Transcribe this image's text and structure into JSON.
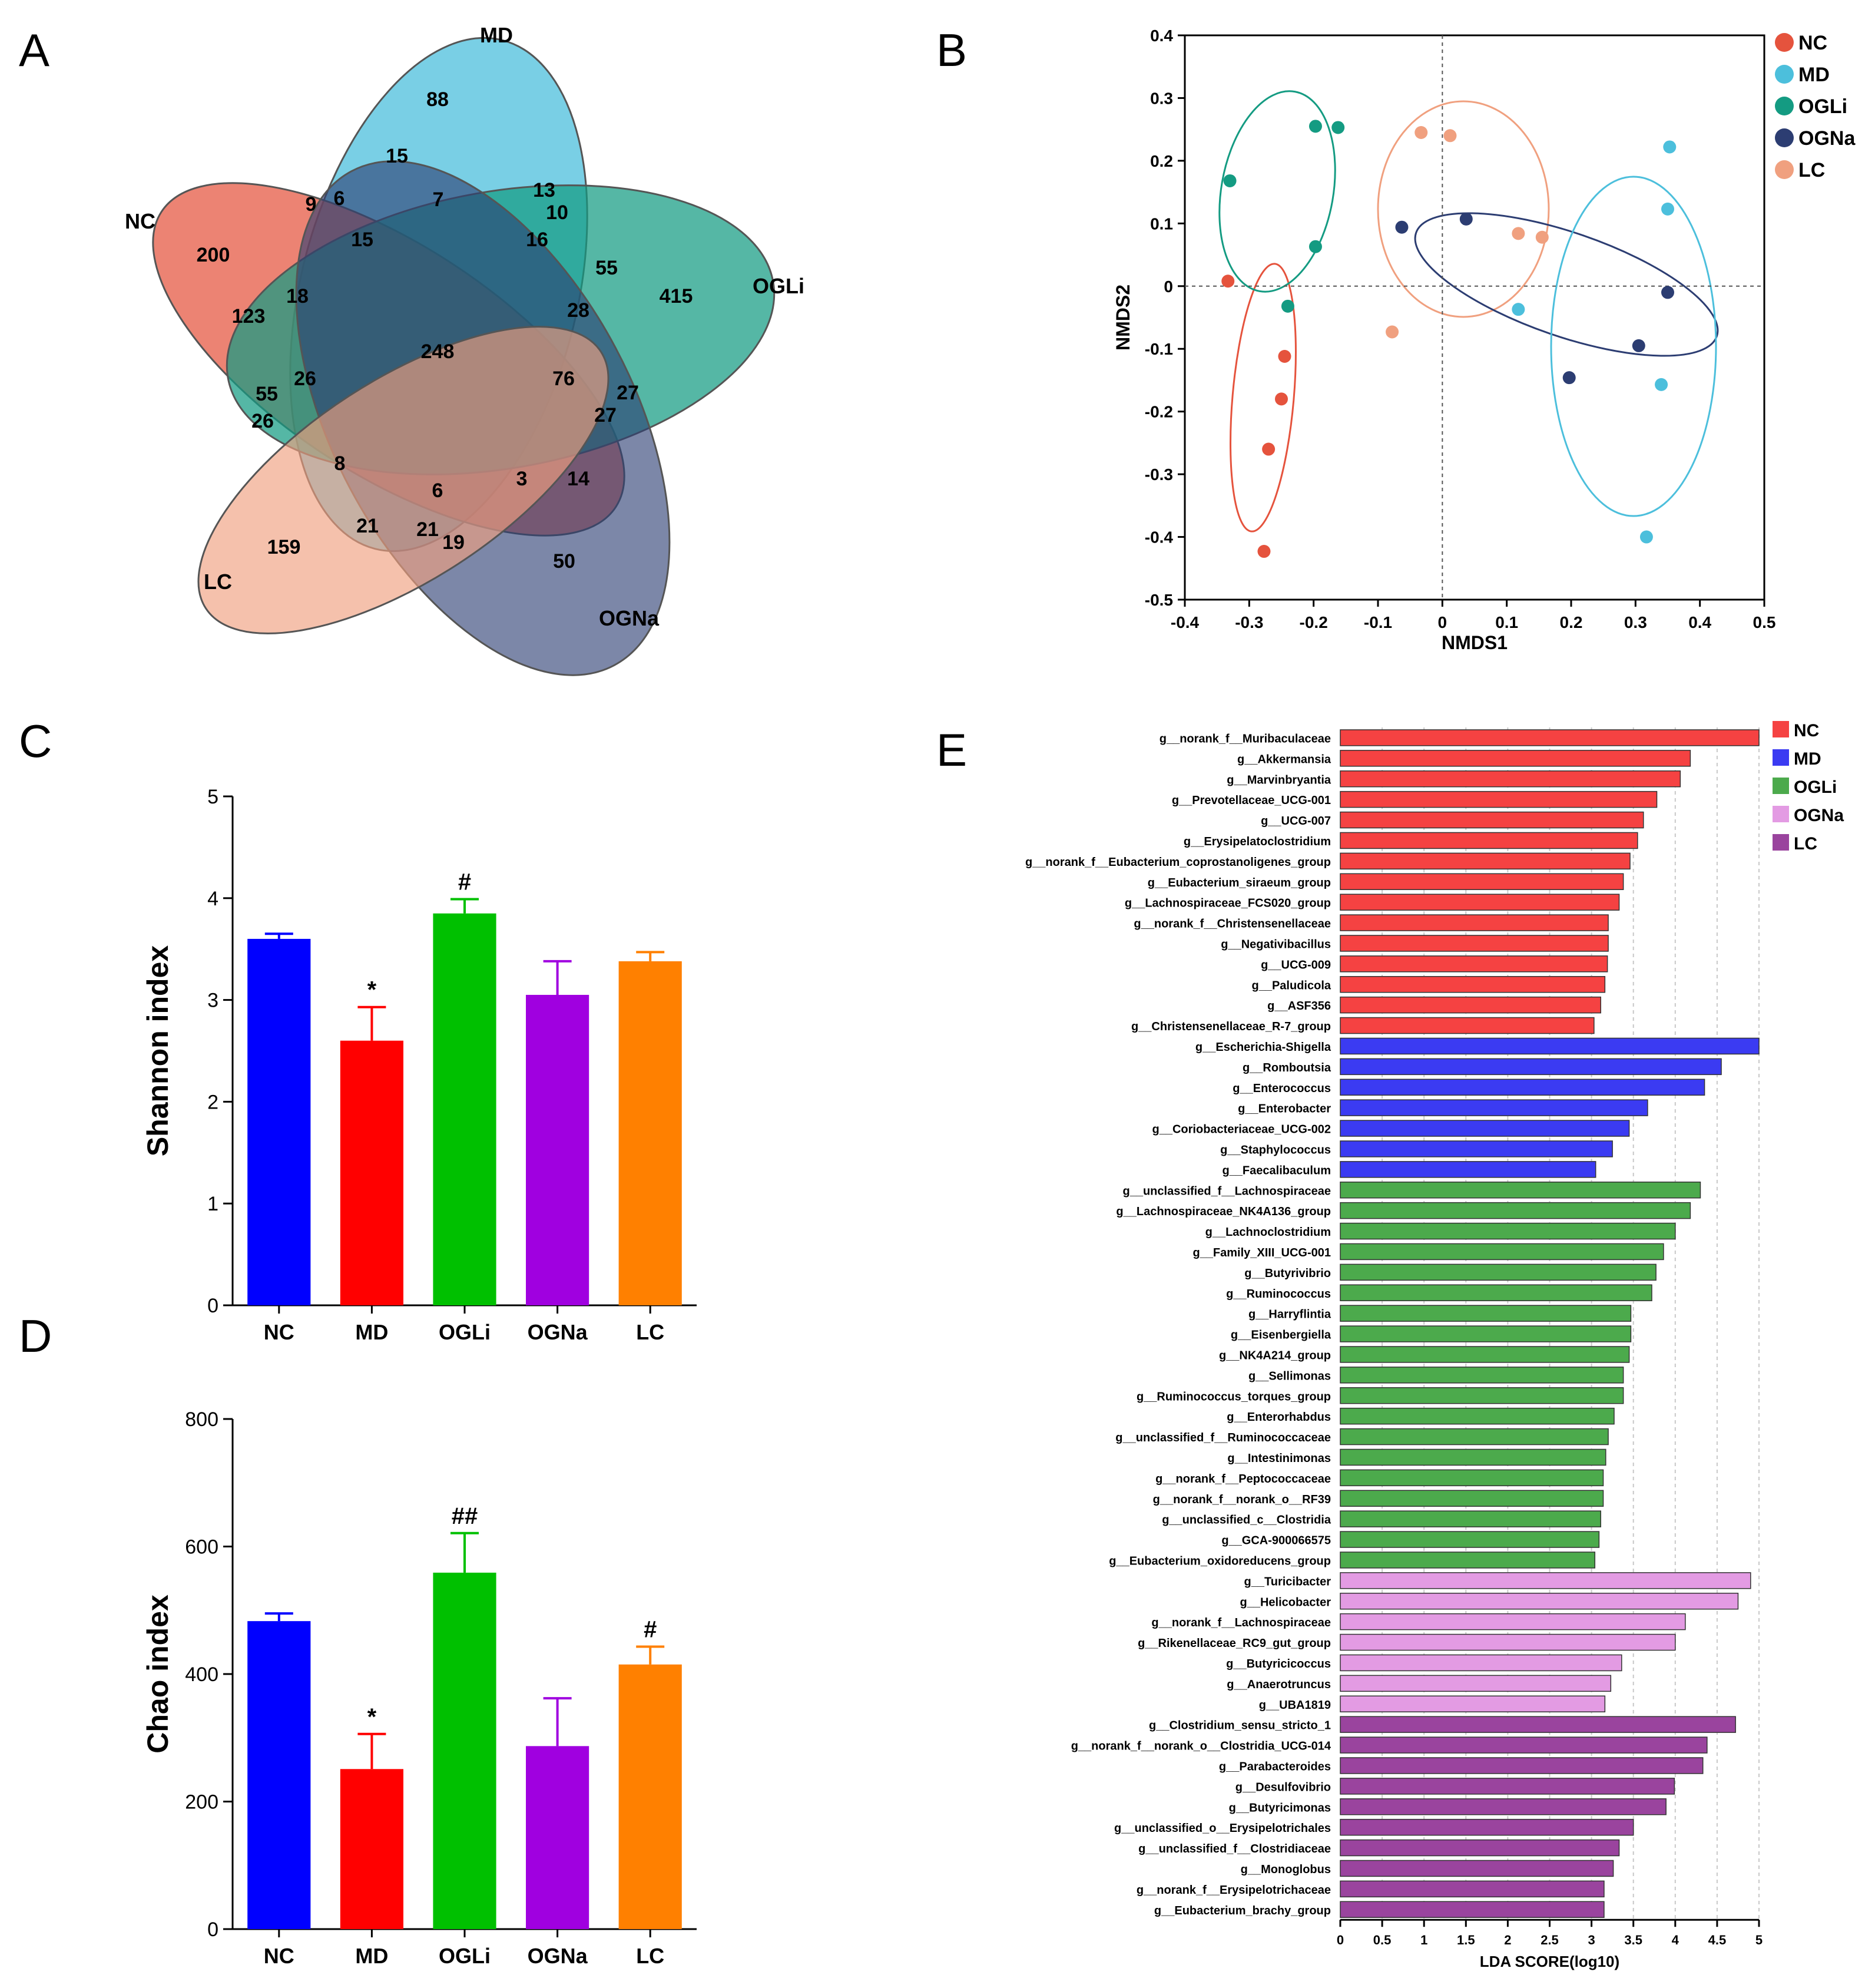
{
  "panels": {
    "A": "A",
    "B": "B",
    "C": "C",
    "D": "D",
    "E": "E"
  },
  "colors": {
    "NC": "#e5533d",
    "MD": "#4cbfdc",
    "OGLi": "#149b82",
    "OGNa": "#2c3d72",
    "LC": "#f0a07f",
    "bar_NC": "#0000ff",
    "bar_MD": "#ff0000",
    "bar_OGLi": "#00c000",
    "bar_OGNa": "#a000e0",
    "bar_LC": "#ff8000",
    "lda_NC": "#f54242",
    "lda_MD": "#3b3bf2",
    "lda_OGLi": "#4caa4c",
    "lda_OGNa": "#e39be3",
    "lda_LC": "#9a449e"
  },
  "chart_data": [
    {
      "id": "venn",
      "type": "venn",
      "sets": [
        "MD",
        "NC",
        "OGLi",
        "LC",
        "OGNa"
      ],
      "counts": [
        {
          "value": "88"
        },
        {
          "value": "15"
        },
        {
          "value": "13"
        },
        {
          "value": "10"
        },
        {
          "value": "9"
        },
        {
          "value": "6"
        },
        {
          "value": "7"
        },
        {
          "value": "200"
        },
        {
          "value": "15"
        },
        {
          "value": "16"
        },
        {
          "value": "55"
        },
        {
          "value": "415"
        },
        {
          "value": "123"
        },
        {
          "value": "18"
        },
        {
          "value": "28"
        },
        {
          "value": "248"
        },
        {
          "value": "26"
        },
        {
          "value": "76"
        },
        {
          "value": "55"
        },
        {
          "value": "27"
        },
        {
          "value": "26"
        },
        {
          "value": "27"
        },
        {
          "value": "8"
        },
        {
          "value": "6"
        },
        {
          "value": "3"
        },
        {
          "value": "14"
        },
        {
          "value": "21"
        },
        {
          "value": "21"
        },
        {
          "value": "19"
        },
        {
          "value": "159"
        },
        {
          "value": "50"
        }
      ]
    },
    {
      "id": "nmds",
      "type": "scatter",
      "xlabel": "NMDS1",
      "ylabel": "NMDS2",
      "xlim": [
        -0.4,
        0.5
      ],
      "ylim": [
        -0.5,
        0.4
      ],
      "xticks": [
        "-0.4",
        "-0.3",
        "-0.2",
        "-0.1",
        "0",
        "0.1",
        "0.2",
        "0.3",
        "0.4",
        "0.5"
      ],
      "yticks": [
        "0.4",
        "0.3",
        "0.2",
        "0.1",
        "0",
        "-0.1",
        "-0.2",
        "-0.3",
        "-0.4",
        "-0.5"
      ],
      "series": [
        {
          "name": "NC",
          "points": [
            [
              -0.333,
              0.008
            ],
            [
              -0.245,
              -0.112
            ],
            [
              -0.25,
              -0.18
            ],
            [
              -0.27,
              -0.26
            ],
            [
              -0.277,
              -0.423
            ]
          ]
        },
        {
          "name": "MD",
          "points": [
            [
              0.353,
              0.222
            ],
            [
              0.35,
              0.123
            ],
            [
              0.118,
              -0.037
            ],
            [
              0.34,
              -0.157
            ],
            [
              0.317,
              -0.4
            ]
          ]
        },
        {
          "name": "OGLi",
          "points": [
            [
              -0.33,
              0.168
            ],
            [
              -0.197,
              0.255
            ],
            [
              -0.162,
              0.253
            ],
            [
              -0.197,
              0.063
            ],
            [
              -0.24,
              -0.032
            ]
          ]
        },
        {
          "name": "OGNa",
          "points": [
            [
              -0.063,
              0.094
            ],
            [
              0.037,
              0.107
            ],
            [
              0.35,
              -0.01
            ],
            [
              0.305,
              -0.095
            ],
            [
              0.197,
              -0.146
            ]
          ]
        },
        {
          "name": "LC",
          "points": [
            [
              -0.033,
              0.245
            ],
            [
              0.012,
              0.24
            ],
            [
              0.118,
              0.084
            ],
            [
              0.155,
              0.078
            ],
            [
              -0.078,
              -0.073
            ]
          ]
        }
      ]
    },
    {
      "id": "shannon",
      "type": "bar",
      "ylabel": "Shannon index",
      "ylim": [
        0,
        5
      ],
      "yticks": [
        "0",
        "1",
        "2",
        "3",
        "4",
        "5"
      ],
      "categories": [
        "NC",
        "MD",
        "OGLi",
        "OGNa",
        "LC"
      ],
      "values": [
        3.6,
        2.6,
        3.85,
        3.05,
        3.38
      ],
      "errors": [
        0.05,
        0.33,
        0.14,
        0.33,
        0.09
      ],
      "marks": [
        "",
        "*",
        "#",
        "",
        ""
      ]
    },
    {
      "id": "chao",
      "type": "bar",
      "ylabel": "Chao index",
      "ylim": [
        0,
        800
      ],
      "yticks": [
        "0",
        "200",
        "400",
        "600",
        "800"
      ],
      "categories": [
        "NC",
        "MD",
        "OGLi",
        "OGNa",
        "LC"
      ],
      "values": [
        483,
        251,
        559,
        287,
        415
      ],
      "errors": [
        12,
        55,
        62,
        75,
        28
      ],
      "marks": [
        "",
        "*",
        "##",
        "",
        "#"
      ]
    },
    {
      "id": "lda",
      "type": "bar",
      "orientation": "horizontal",
      "xlabel": "LDA SCORE(log10)",
      "xlim": [
        0,
        5
      ],
      "xticks": [
        "0",
        "0.5",
        "1",
        "1.5",
        "2",
        "2.5",
        "3",
        "3.5",
        "4",
        "4.5",
        "5"
      ],
      "legend": [
        "NC",
        "MD",
        "OGLi",
        "OGNa",
        "LC"
      ],
      "bars": [
        {
          "group": "NC",
          "label": "g__norank_f__Muribaculaceae",
          "value": 5.0
        },
        {
          "group": "NC",
          "label": "g__Akkermansia",
          "value": 4.18
        },
        {
          "group": "NC",
          "label": "g__Marvinbryantia",
          "value": 4.06
        },
        {
          "group": "NC",
          "label": "g__Prevotellaceae_UCG-001",
          "value": 3.78
        },
        {
          "group": "NC",
          "label": "g__UCG-007",
          "value": 3.62
        },
        {
          "group": "NC",
          "label": "g__Erysipelatoclostridium",
          "value": 3.55
        },
        {
          "group": "NC",
          "label": "g__norank_f__Eubacterium_coprostanoligenes_group",
          "value": 3.46
        },
        {
          "group": "NC",
          "label": "g__Eubacterium_siraeum_group",
          "value": 3.38
        },
        {
          "group": "NC",
          "label": "g__Lachnospiraceae_FCS020_group",
          "value": 3.33
        },
        {
          "group": "NC",
          "label": "g__norank_f__Christensenellaceae",
          "value": 3.2
        },
        {
          "group": "NC",
          "label": "g__Negativibacillus",
          "value": 3.2
        },
        {
          "group": "NC",
          "label": "g__UCG-009",
          "value": 3.19
        },
        {
          "group": "NC",
          "label": "g__Paludicola",
          "value": 3.16
        },
        {
          "group": "NC",
          "label": "g__ASF356",
          "value": 3.11
        },
        {
          "group": "NC",
          "label": "g__Christensenellaceae_R-7_group",
          "value": 3.03
        },
        {
          "group": "MD",
          "label": "g__Escherichia-Shigella",
          "value": 5.0
        },
        {
          "group": "MD",
          "label": "g__Romboutsia",
          "value": 4.55
        },
        {
          "group": "MD",
          "label": "g__Enterococcus",
          "value": 4.35
        },
        {
          "group": "MD",
          "label": "g__Enterobacter",
          "value": 3.67
        },
        {
          "group": "MD",
          "label": "g__Coriobacteriaceae_UCG-002",
          "value": 3.45
        },
        {
          "group": "MD",
          "label": "g__Staphylococcus",
          "value": 3.25
        },
        {
          "group": "MD",
          "label": "g__Faecalibaculum",
          "value": 3.05
        },
        {
          "group": "OGLi",
          "label": "g__unclassified_f__Lachnospiraceae",
          "value": 4.3
        },
        {
          "group": "OGLi",
          "label": "g__Lachnospiraceae_NK4A136_group",
          "value": 4.18
        },
        {
          "group": "OGLi",
          "label": "g__Lachnoclostridium",
          "value": 4.0
        },
        {
          "group": "OGLi",
          "label": "g__Family_XIII_UCG-001",
          "value": 3.86
        },
        {
          "group": "OGLi",
          "label": "g__Butyrivibrio",
          "value": 3.77
        },
        {
          "group": "OGLi",
          "label": "g__Ruminococcus",
          "value": 3.72
        },
        {
          "group": "OGLi",
          "label": "g__Harryflintia",
          "value": 3.47
        },
        {
          "group": "OGLi",
          "label": "g__Eisenbergiella",
          "value": 3.47
        },
        {
          "group": "OGLi",
          "label": "g__NK4A214_group",
          "value": 3.45
        },
        {
          "group": "OGLi",
          "label": "g__Sellimonas",
          "value": 3.38
        },
        {
          "group": "OGLi",
          "label": "g__Ruminococcus_torques_group",
          "value": 3.38
        },
        {
          "group": "OGLi",
          "label": "g__Enterorhabdus",
          "value": 3.27
        },
        {
          "group": "OGLi",
          "label": "g__unclassified_f__Ruminococcaceae",
          "value": 3.2
        },
        {
          "group": "OGLi",
          "label": "g__Intestinimonas",
          "value": 3.17
        },
        {
          "group": "OGLi",
          "label": "g__norank_f__Peptococcaceae",
          "value": 3.14
        },
        {
          "group": "OGLi",
          "label": "g__norank_f__norank_o__RF39",
          "value": 3.14
        },
        {
          "group": "OGLi",
          "label": "g__unclassified_c__Clostridia",
          "value": 3.11
        },
        {
          "group": "OGLi",
          "label": "g__GCA-900066575",
          "value": 3.09
        },
        {
          "group": "OGLi",
          "label": "g__Eubacterium_oxidoreducens_group",
          "value": 3.04
        },
        {
          "group": "OGNa",
          "label": "g__Turicibacter",
          "value": 4.9
        },
        {
          "group": "OGNa",
          "label": "g__Helicobacter",
          "value": 4.75
        },
        {
          "group": "OGNa",
          "label": "g__norank_f__Lachnospiraceae",
          "value": 4.12
        },
        {
          "group": "OGNa",
          "label": "g__Rikenellaceae_RC9_gut_group",
          "value": 4.0
        },
        {
          "group": "OGNa",
          "label": "g__Butyricicoccus",
          "value": 3.36
        },
        {
          "group": "OGNa",
          "label": "g__Anaerotruncus",
          "value": 3.23
        },
        {
          "group": "OGNa",
          "label": "g__UBA1819",
          "value": 3.16
        },
        {
          "group": "LC",
          "label": "g__Clostridium_sensu_stricto_1",
          "value": 4.72
        },
        {
          "group": "LC",
          "label": "g__norank_f__norank_o__Clostridia_UCG-014",
          "value": 4.38
        },
        {
          "group": "LC",
          "label": "g__Parabacteroides",
          "value": 4.33
        },
        {
          "group": "LC",
          "label": "g__Desulfovibrio",
          "value": 3.99
        },
        {
          "group": "LC",
          "label": "g__Butyricimonas",
          "value": 3.89
        },
        {
          "group": "LC",
          "label": "g__unclassified_o__Erysipelotrichales",
          "value": 3.5
        },
        {
          "group": "LC",
          "label": "g__unclassified_f__Clostridiaceae",
          "value": 3.33
        },
        {
          "group": "LC",
          "label": "g__Monoglobus",
          "value": 3.26
        },
        {
          "group": "LC",
          "label": "g__norank_f__Erysipelotrichaceae",
          "value": 3.15
        },
        {
          "group": "LC",
          "label": "g__Eubacterium_brachy_group",
          "value": 3.15
        }
      ]
    }
  ]
}
